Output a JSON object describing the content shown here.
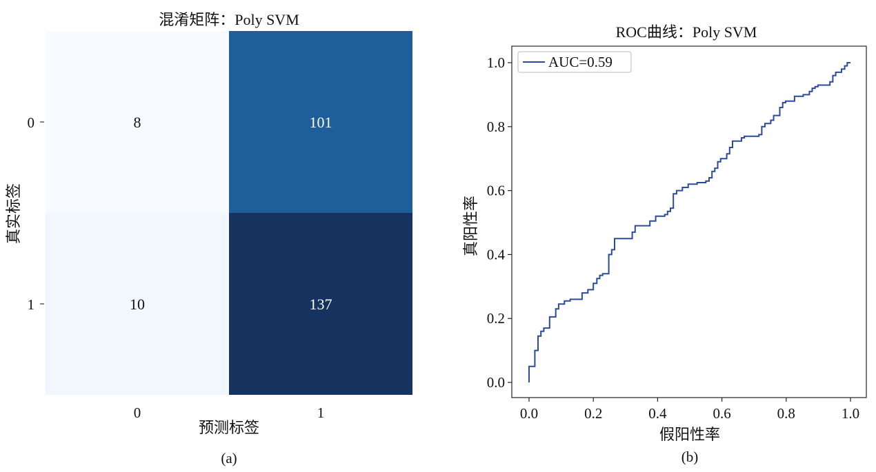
{
  "chart_data": [
    {
      "type": "heatmap",
      "title": "混淆矩阵：Poly SVM",
      "xlabel": "预测标签",
      "ylabel": "真实标签",
      "x_categories": [
        "0",
        "1"
      ],
      "y_categories": [
        "0",
        "1"
      ],
      "values": [
        [
          8,
          101
        ],
        [
          10,
          137
        ]
      ],
      "colormap": "Blues",
      "panel_label": "(a)"
    },
    {
      "type": "line",
      "title": "ROC曲线：Poly SVM",
      "xlabel": "假阳性率",
      "ylabel": "真阳性率",
      "xlim": [
        0.0,
        1.0
      ],
      "ylim": [
        0.0,
        1.0
      ],
      "x_ticks": [
        "0.0",
        "0.2",
        "0.4",
        "0.6",
        "0.8",
        "1.0"
      ],
      "y_ticks": [
        "0.0",
        "0.2",
        "0.4",
        "0.6",
        "0.8",
        "1.0"
      ],
      "legend_position": "top-left",
      "series": [
        {
          "name": "AUC=0.59",
          "color": "#2b4a9a",
          "points": [
            [
              0.0,
              0.0
            ],
            [
              0.0,
              0.05
            ],
            [
              0.018,
              0.05
            ],
            [
              0.018,
              0.1
            ],
            [
              0.028,
              0.1
            ],
            [
              0.028,
              0.145
            ],
            [
              0.037,
              0.145
            ],
            [
              0.037,
              0.16
            ],
            [
              0.046,
              0.16
            ],
            [
              0.046,
              0.17
            ],
            [
              0.064,
              0.17
            ],
            [
              0.064,
              0.205
            ],
            [
              0.083,
              0.205
            ],
            [
              0.083,
              0.23
            ],
            [
              0.092,
              0.23
            ],
            [
              0.092,
              0.245
            ],
            [
              0.11,
              0.245
            ],
            [
              0.11,
              0.255
            ],
            [
              0.128,
              0.255
            ],
            [
              0.128,
              0.26
            ],
            [
              0.165,
              0.26
            ],
            [
              0.165,
              0.28
            ],
            [
              0.183,
              0.28
            ],
            [
              0.183,
              0.29
            ],
            [
              0.2,
              0.29
            ],
            [
              0.2,
              0.31
            ],
            [
              0.211,
              0.31
            ],
            [
              0.211,
              0.325
            ],
            [
              0.22,
              0.325
            ],
            [
              0.22,
              0.335
            ],
            [
              0.229,
              0.335
            ],
            [
              0.229,
              0.34
            ],
            [
              0.248,
              0.34
            ],
            [
              0.248,
              0.4
            ],
            [
              0.257,
              0.4
            ],
            [
              0.257,
              0.415
            ],
            [
              0.266,
              0.415
            ],
            [
              0.266,
              0.45
            ],
            [
              0.321,
              0.45
            ],
            [
              0.321,
              0.47
            ],
            [
              0.33,
              0.47
            ],
            [
              0.33,
              0.49
            ],
            [
              0.376,
              0.49
            ],
            [
              0.376,
              0.505
            ],
            [
              0.394,
              0.505
            ],
            [
              0.394,
              0.52
            ],
            [
              0.422,
              0.52
            ],
            [
              0.422,
              0.525
            ],
            [
              0.431,
              0.525
            ],
            [
              0.431,
              0.535
            ],
            [
              0.44,
              0.535
            ],
            [
              0.44,
              0.545
            ],
            [
              0.449,
              0.545
            ],
            [
              0.449,
              0.59
            ],
            [
              0.459,
              0.59
            ],
            [
              0.459,
              0.6
            ],
            [
              0.477,
              0.6
            ],
            [
              0.477,
              0.61
            ],
            [
              0.495,
              0.61
            ],
            [
              0.495,
              0.62
            ],
            [
              0.523,
              0.62
            ],
            [
              0.523,
              0.625
            ],
            [
              0.55,
              0.625
            ],
            [
              0.55,
              0.63
            ],
            [
              0.56,
              0.63
            ],
            [
              0.56,
              0.64
            ],
            [
              0.569,
              0.64
            ],
            [
              0.569,
              0.66
            ],
            [
              0.578,
              0.66
            ],
            [
              0.578,
              0.67
            ],
            [
              0.587,
              0.67
            ],
            [
              0.587,
              0.69
            ],
            [
              0.596,
              0.69
            ],
            [
              0.596,
              0.7
            ],
            [
              0.615,
              0.7
            ],
            [
              0.615,
              0.715
            ],
            [
              0.624,
              0.715
            ],
            [
              0.624,
              0.735
            ],
            [
              0.633,
              0.735
            ],
            [
              0.633,
              0.755
            ],
            [
              0.661,
              0.755
            ],
            [
              0.661,
              0.765
            ],
            [
              0.67,
              0.765
            ],
            [
              0.67,
              0.77
            ],
            [
              0.715,
              0.77
            ],
            [
              0.715,
              0.775
            ],
            [
              0.724,
              0.775
            ],
            [
              0.724,
              0.8
            ],
            [
              0.734,
              0.8
            ],
            [
              0.734,
              0.81
            ],
            [
              0.752,
              0.81
            ],
            [
              0.752,
              0.82
            ],
            [
              0.761,
              0.82
            ],
            [
              0.761,
              0.835
            ],
            [
              0.78,
              0.835
            ],
            [
              0.78,
              0.86
            ],
            [
              0.789,
              0.86
            ],
            [
              0.789,
              0.875
            ],
            [
              0.798,
              0.875
            ],
            [
              0.798,
              0.88
            ],
            [
              0.826,
              0.88
            ],
            [
              0.826,
              0.895
            ],
            [
              0.853,
              0.895
            ],
            [
              0.853,
              0.9
            ],
            [
              0.872,
              0.9
            ],
            [
              0.872,
              0.91
            ],
            [
              0.881,
              0.91
            ],
            [
              0.881,
              0.92
            ],
            [
              0.89,
              0.92
            ],
            [
              0.89,
              0.925
            ],
            [
              0.899,
              0.925
            ],
            [
              0.899,
              0.93
            ],
            [
              0.936,
              0.93
            ],
            [
              0.936,
              0.94
            ],
            [
              0.945,
              0.94
            ],
            [
              0.945,
              0.96
            ],
            [
              0.954,
              0.96
            ],
            [
              0.954,
              0.97
            ],
            [
              0.972,
              0.97
            ],
            [
              0.972,
              0.98
            ],
            [
              0.982,
              0.98
            ],
            [
              0.982,
              0.99
            ],
            [
              0.99,
              0.99
            ],
            [
              0.99,
              1.0
            ],
            [
              1.0,
              1.0
            ]
          ]
        }
      ],
      "panel_label": "(b)"
    }
  ]
}
